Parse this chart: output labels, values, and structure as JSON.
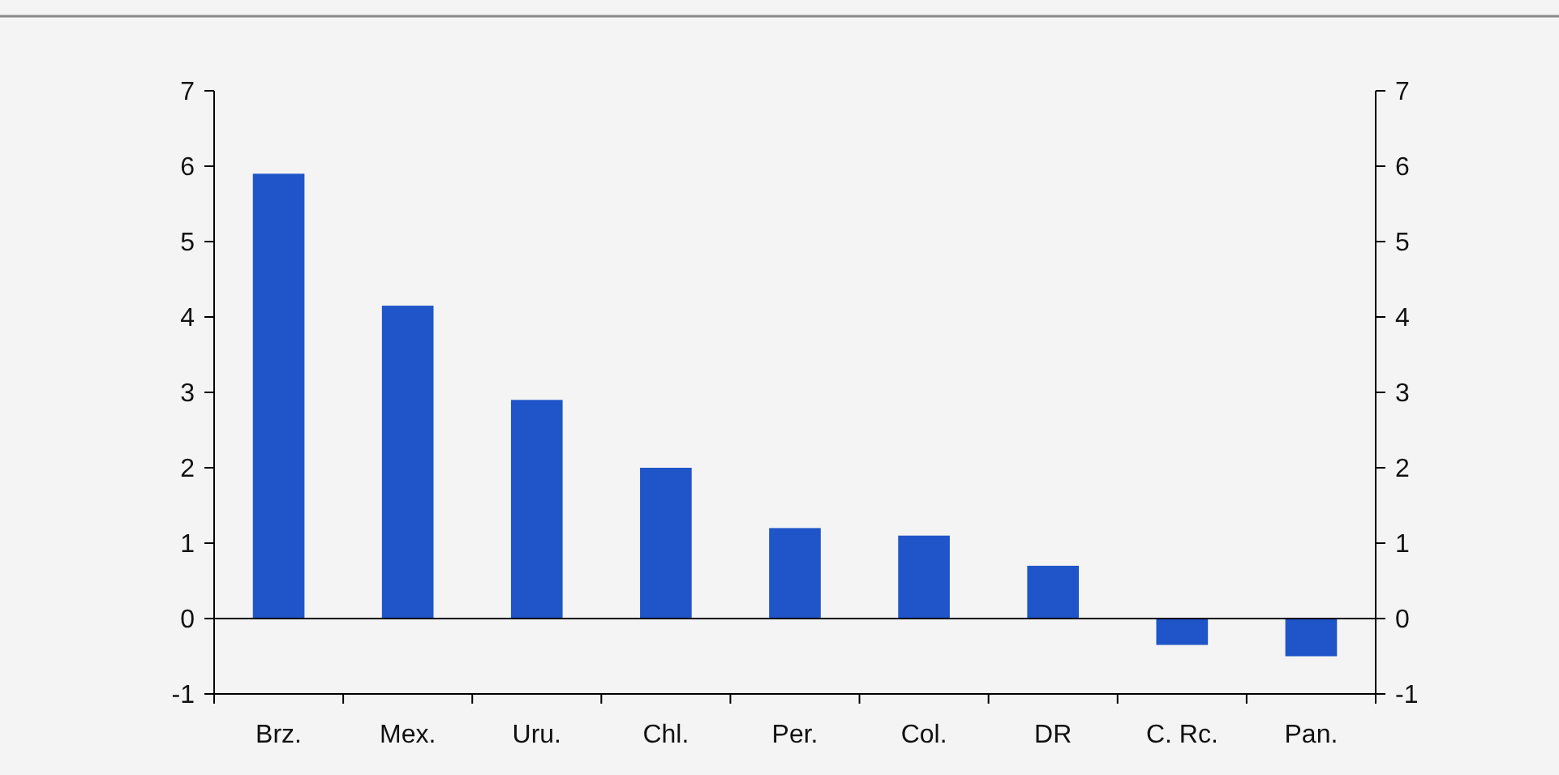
{
  "chart_data": {
    "type": "bar",
    "categories": [
      "Brz.",
      "Mex.",
      "Uru.",
      "Chl.",
      "Per.",
      "Col.",
      "DR",
      "C. Rc.",
      "Pan."
    ],
    "values": [
      5.9,
      4.15,
      2.9,
      2.0,
      1.2,
      1.1,
      0.7,
      -0.35,
      -0.5
    ],
    "color": "#1f55c8",
    "ylim": [
      -1,
      7
    ],
    "yticks": [
      -1,
      0,
      1,
      2,
      3,
      4,
      5,
      6,
      7
    ],
    "y2lim": [
      -1,
      7
    ],
    "y2ticks": [
      -1,
      0,
      1,
      2,
      3,
      4,
      5,
      6,
      7
    ]
  }
}
